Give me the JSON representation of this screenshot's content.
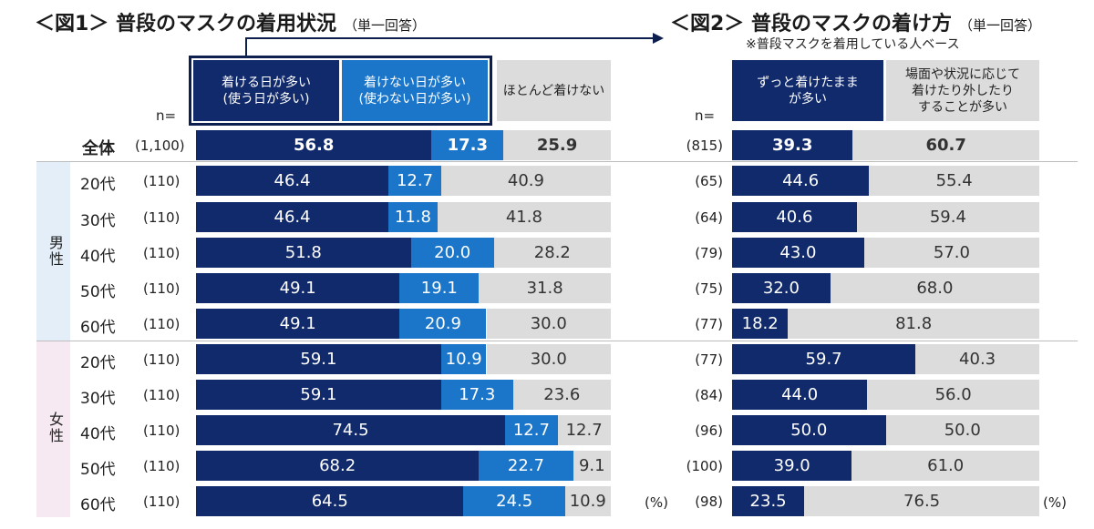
{
  "chart_data": [
    {
      "type": "bar",
      "stacked": "horizontal-100%",
      "title": "＜図1＞ 普段のマスクの着用状況",
      "subtitle": "（単一回答）",
      "n_header": "n=",
      "unit": "(%)",
      "groups": [
        "男性",
        "女性"
      ],
      "categories": [
        "全体",
        "20代",
        "30代",
        "40代",
        "50代",
        "60代",
        "20代",
        "30代",
        "40代",
        "50代",
        "60代"
      ],
      "n": [
        "(1,100)",
        "(110)",
        "(110)",
        "(110)",
        "(110)",
        "(110)",
        "(110)",
        "(110)",
        "(110)",
        "(110)",
        "(110)"
      ],
      "series": [
        {
          "name": "着ける日が多い\n(使う日が多い)",
          "color": "#112a6b",
          "label_color": "#ffffff",
          "values": [
            56.8,
            46.4,
            46.4,
            51.8,
            49.1,
            49.1,
            59.1,
            59.1,
            74.5,
            68.2,
            64.5
          ]
        },
        {
          "name": "着けない日が多い\n(使わない日が多い)",
          "color": "#1b76c9",
          "label_color": "#ffffff",
          "values": [
            17.3,
            12.7,
            11.8,
            20.0,
            19.1,
            20.9,
            10.9,
            17.3,
            12.7,
            22.7,
            24.5
          ]
        },
        {
          "name": "ほとんど着けない",
          "color": "#dcdcdc",
          "label_color": "#333333",
          "values": [
            25.9,
            40.9,
            41.8,
            28.2,
            31.8,
            30.0,
            30.0,
            23.6,
            12.7,
            9.1,
            10.9
          ]
        }
      ]
    },
    {
      "type": "bar",
      "stacked": "horizontal-100%",
      "title": "＜図2＞ 普段のマスクの着け方",
      "subtitle": "（単一回答）",
      "note": "※普段マスクを着用している人ベース",
      "n_header": "n=",
      "unit": "(%)",
      "n": [
        "(815)",
        "(65)",
        "(64)",
        "(79)",
        "(75)",
        "(77)",
        "(77)",
        "(84)",
        "(96)",
        "(100)",
        "(98)"
      ],
      "series": [
        {
          "name": "ずっと着けたまま\nが多い",
          "color": "#112a6b",
          "label_color": "#ffffff",
          "values": [
            39.3,
            44.6,
            40.6,
            43.0,
            32.0,
            18.2,
            59.7,
            44.0,
            50.0,
            39.0,
            23.5
          ]
        },
        {
          "name": "場面や状況に応じて\n着けたり外したり\nすることが多い",
          "color": "#dcdcdc",
          "label_color": "#333333",
          "values": [
            60.7,
            55.4,
            59.4,
            57.0,
            68.0,
            81.8,
            40.3,
            56.0,
            50.0,
            61.0,
            76.5
          ]
        }
      ]
    }
  ]
}
